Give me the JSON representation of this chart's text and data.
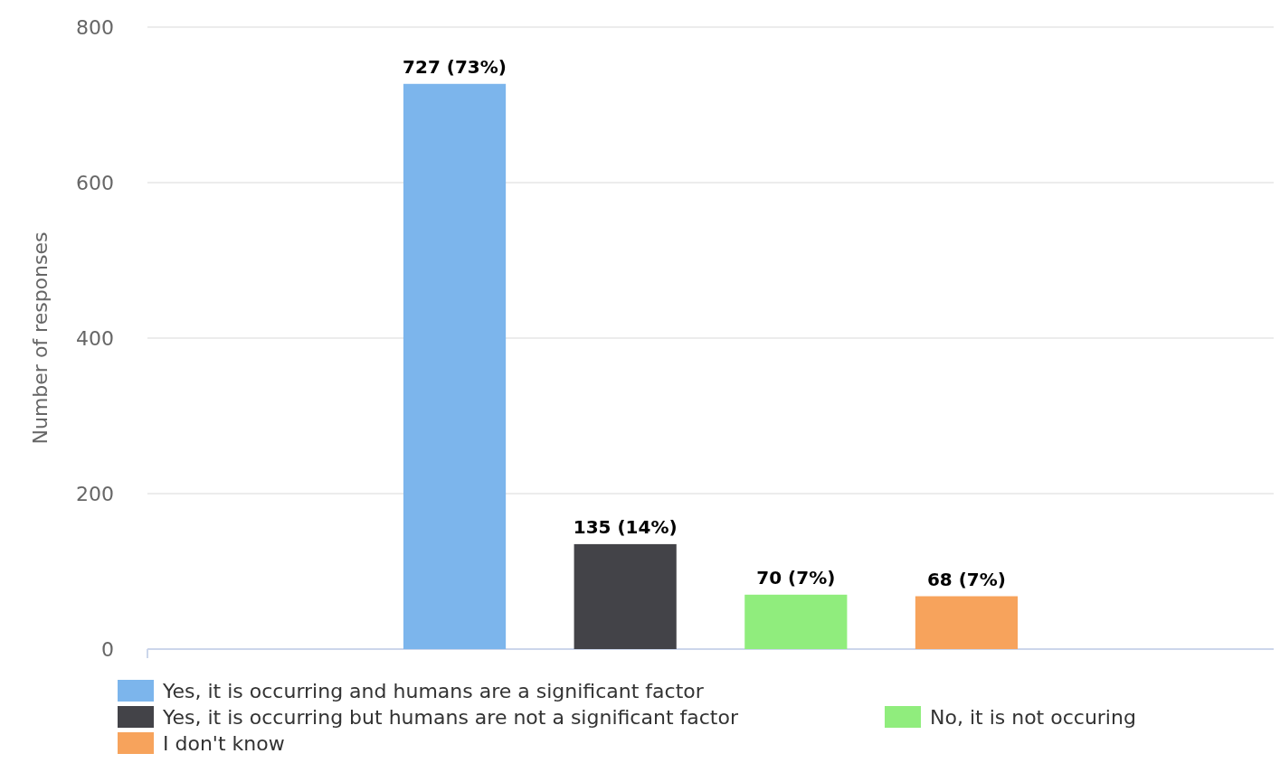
{
  "chart_data": {
    "type": "bar",
    "ylabel": "Number of responses",
    "categories": [
      null
    ],
    "series": [
      {
        "name": "Yes, it is occurring and humans are a significant factor",
        "color": "#7cb5ec",
        "values": [
          727
        ],
        "value_labels": [
          "727 (73%)"
        ]
      },
      {
        "name": "Yes, it is occurring but humans are not a significant factor",
        "color": "#434348",
        "values": [
          135
        ],
        "value_labels": [
          "135 (14%)"
        ]
      },
      {
        "name": "No, it is not occuring",
        "color": "#90ed7d",
        "values": [
          70
        ],
        "value_labels": [
          "70 (7%)"
        ]
      },
      {
        "name": "I don't know",
        "color": "#f7a35c",
        "values": [
          68
        ],
        "value_labels": [
          "68 (7%)"
        ]
      }
    ],
    "ylim": [
      0,
      800
    ],
    "yticks": [
      0,
      200,
      400,
      600,
      800
    ],
    "grid": "y",
    "legend": "bottom"
  }
}
